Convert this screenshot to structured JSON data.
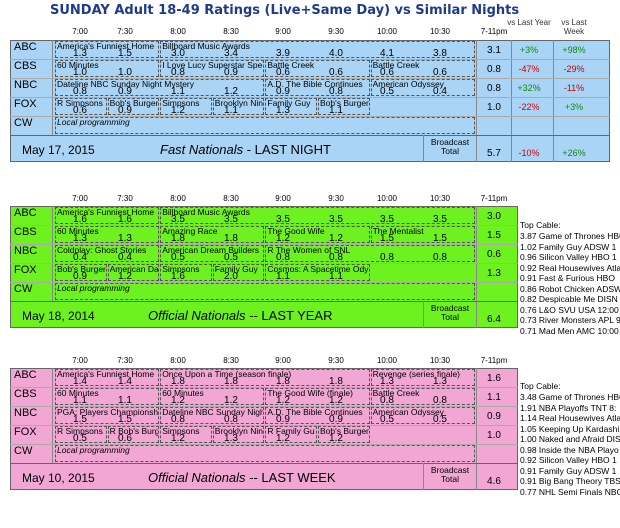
{
  "title": "SUNDAY Adult 18-49 Ratings (Live+Same Day) vs Similar Nights",
  "time_headers": [
    "7:00",
    "7:30",
    "8:00",
    "8:30",
    "9:00",
    "9:30",
    "10:00",
    "10:30",
    "7-11pm"
  ],
  "vs_headers": {
    "last_year": "vs Last Year",
    "last_week": "vs Last Week"
  },
  "networks": [
    "ABC",
    "CBS",
    "NBC",
    "FOX",
    "CW"
  ],
  "sections": [
    {
      "id": "last-night",
      "date": "May 17, 2015",
      "label_bold": "Fast Nationals",
      "label_rest": " - LAST NIGHT",
      "broadcast_label": "Broadcast Total",
      "broadcast_total": "5.7",
      "broadcast_vs_year": "-10%",
      "broadcast_vs_week": "+26%",
      "rows": [
        {
          "shows": [
            "America's Funniest Home",
            "Billboard Music Awards"
          ],
          "ratings": [
            "1.3",
            "1.5",
            "3.0",
            "3.4",
            "3.9",
            "4.0",
            "4.1",
            "3.8"
          ],
          "total": "3.1",
          "vs_year": "+3%",
          "vs_week": "+98%"
        },
        {
          "shows": [
            "60 Minutes",
            "I Love Lucy Superstar Spe",
            "Battle Creek",
            "Battle Creek"
          ],
          "ratings": [
            "1.0",
            "1.0",
            "0.8",
            "0.9",
            "0.6",
            "0.6",
            "0.6",
            "0.6"
          ],
          "total": "0.8",
          "vs_year": "-47%",
          "vs_week": "-29%"
        },
        {
          "shows": [
            "Dateline NBC Sunday Night Mystery",
            "A.D. The Bible Continues",
            "American Odyssey"
          ],
          "ratings": [
            "0.8",
            "0.9",
            "1.1",
            "1.2",
            "0.9",
            "0.8",
            "0.5",
            "0.4"
          ],
          "total": "0.8",
          "vs_year": "+32%",
          "vs_week": "-11%"
        },
        {
          "shows": [
            "R Simpsons",
            "Bob's Burger",
            "Simpsons",
            "Brooklyn Nin",
            "Family Guy",
            "Bob's Burger"
          ],
          "ratings": [
            "0.6",
            "0.9",
            "1.2",
            "1.1",
            "1.3",
            "1.1"
          ],
          "total": "1.0",
          "vs_year": "-22%",
          "vs_week": "+3%"
        },
        {
          "shows": [
            "Local programming"
          ],
          "ratings": [],
          "total": "",
          "vs_year": "",
          "vs_week": ""
        }
      ]
    },
    {
      "id": "last-year",
      "date": "May 18, 2014",
      "label_bold": "Official Nationals",
      "label_rest": " -- LAST YEAR",
      "broadcast_label": "Broadcast Total",
      "broadcast_total": "6.4",
      "rows": [
        {
          "shows": [
            "America's Funniest Home",
            "Billboard Music Awards"
          ],
          "ratings": [
            "1.6",
            "1.6",
            "3.5",
            "3.5",
            "3.5",
            "3.5",
            "3.5",
            "3.5"
          ],
          "total": "3.0"
        },
        {
          "shows": [
            "60 Minutes",
            "Amazing Race",
            "The Good Wife",
            "The Mentalist"
          ],
          "ratings": [
            "1.3",
            "1.3",
            "1.8",
            "1.8",
            "1.2",
            "1.2",
            "1.5",
            "1.5"
          ],
          "total": "1.5"
        },
        {
          "shows": [
            "Coldplay: Ghost Stories",
            "American Dream Builders",
            "R The Women of SNL"
          ],
          "ratings": [
            "0.4",
            "0.4",
            "0.5",
            "0.5",
            "0.8",
            "0.8",
            "0.8",
            "0.8"
          ],
          "total": "0.6"
        },
        {
          "shows": [
            "Bob's Burger",
            "American Da",
            "Simpsons",
            "Family Guy",
            "Cosmos: A Spacetime Ody"
          ],
          "ratings": [
            "0.9",
            "1.2",
            "1.6",
            "2.0",
            "1.1",
            "1.1"
          ],
          "total": "1.3"
        },
        {
          "shows": [
            "Local programming"
          ],
          "ratings": [],
          "total": ""
        }
      ]
    },
    {
      "id": "last-week",
      "date": "May 10, 2015",
      "label_bold": "Official Nationals",
      "label_rest": " -- LAST WEEK",
      "broadcast_label": "Broadcast Total",
      "broadcast_total": "4.6",
      "rows": [
        {
          "shows": [
            "America's Funniest Home",
            "Once Upon a Time (season finale)",
            "Revenge (series finale)"
          ],
          "ratings": [
            "1.4",
            "1.4",
            "1.8",
            "1.8",
            "1.8",
            "1.8",
            "1.3",
            "1.3"
          ],
          "total": "1.6"
        },
        {
          "shows": [
            "60 Minutes",
            "60 Minutes",
            "The Good Wife (finale)",
            "Battle Creek"
          ],
          "ratings": [
            "1.1",
            "1.1",
            "1.2",
            "1.2",
            "1.2",
            "1.2",
            "0.8",
            "0.8"
          ],
          "total": "1.1"
        },
        {
          "shows": [
            "PGA: Players Championsh",
            "Dateline NBC Sunday Nigh",
            "A.D. The Bible Continues",
            "American Odyssey"
          ],
          "ratings": [
            "1.5",
            "1.5",
            "0.8",
            "0.8",
            "0.9",
            "0.9",
            "0.5",
            "0.5"
          ],
          "total": "0.9"
        },
        {
          "shows": [
            "R Simpsons",
            "R Bob's Burg",
            "Simpsons",
            "Brooklyn Nin",
            "R Family Gu",
            "Bob's Burger"
          ],
          "ratings": [
            "0.5",
            "0.6",
            "1.2",
            "1.3",
            "1.2",
            "1.2"
          ],
          "total": "1.0"
        },
        {
          "shows": [
            "Local programming"
          ],
          "ratings": [],
          "total": ""
        }
      ]
    }
  ],
  "cable_last_year": {
    "header": "Top Cable:",
    "items": [
      "3.87 Game of Thrones HBO",
      "1.02 Family Guy ADSW 1",
      "0.96 Silicon Valley HBO 1",
      "0.92 Real Housewives Atla",
      "0.91 Fast & Furious HBO",
      "0.86 Robot Chicken ADSW",
      "0.82 Despicable Me DISN",
      "0.76 L&O SVU USA 12:00",
      "0.73 River Monsters APL 9",
      "0.71 Mad Men AMC 10:00"
    ]
  },
  "cable_last_week": {
    "header": "Top Cable:",
    "items": [
      "3.48 Game of Thrones HBO",
      "1.91 NBA Playoffs TNT 8:",
      "1.14 Real Housewives Atla",
      "1.05 Keeping Up Kardashi",
      "1.00 Naked and Afraid DIS",
      "0.98 Inside the NBA Playo",
      "0.92 Silicon Valley HBO 1",
      "0.91 Family Guy ADSW 1",
      "0.91 Big Bang Theory TBS",
      "0.77 NHL Semi Finals NBC"
    ]
  },
  "colors": {
    "blue": "#a9d4f5",
    "green": "#6ef21f",
    "pink": "#f2a6d4",
    "positive": "#118811",
    "negative": "#cc0000",
    "title": "#1f3a8a"
  }
}
